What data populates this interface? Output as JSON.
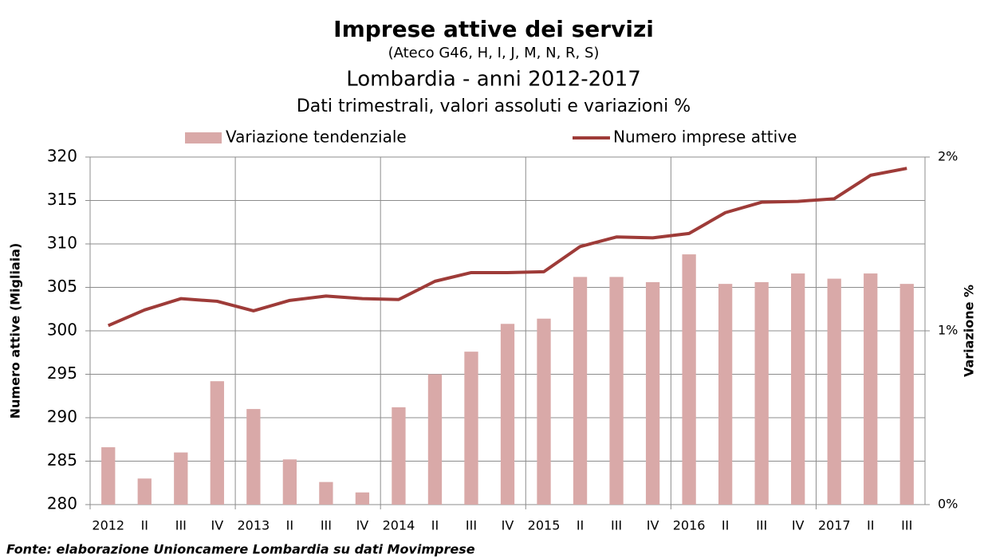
{
  "chart_data": {
    "type": "bar_line",
    "title": "Imprese attive dei servizi",
    "subtitle": "(Ateco G46, H, I, J, M, N, R, S)",
    "subtitle2": "Lombardia - anni 2012-2017",
    "subtitle3": "Dati trimestrali, valori assoluti e variazioni %",
    "ylabel": "Numero attive (Migliaia)",
    "y2label": "Variazione %",
    "source": "Fonte: elaborazione Unioncamere Lombardia su dati Movimprese",
    "categories": [
      "2012",
      "II",
      "III",
      "IV",
      "2013",
      "II",
      "III",
      "IV",
      "2014",
      "II",
      "III",
      "IV",
      "2015",
      "II",
      "III",
      "IV",
      "2016",
      "II",
      "III",
      "IV",
      "2017",
      "II",
      "III"
    ],
    "series": [
      {
        "name": "Variazione tendenziale",
        "color": "#d9a9a8",
        "kind": "bar",
        "axis": "y2",
        "values": [
          0.33,
          0.15,
          0.3,
          0.71,
          0.55,
          0.26,
          0.13,
          0.07,
          0.56,
          0.75,
          0.88,
          1.04,
          1.07,
          1.31,
          1.31,
          1.28,
          1.44,
          1.27,
          1.28,
          1.33,
          1.3,
          1.33,
          1.27
        ]
      },
      {
        "name": "Numero imprese attive",
        "color": "#9e3b38",
        "kind": "line",
        "values": [
          300.6,
          302.4,
          303.7,
          303.4,
          302.3,
          303.5,
          304.0,
          303.7,
          303.6,
          305.7,
          306.7,
          306.7,
          306.8,
          309.7,
          310.8,
          310.7,
          311.2,
          313.6,
          314.8,
          314.9,
          315.2,
          317.9,
          318.7
        ]
      }
    ],
    "ylim": [
      280,
      320
    ],
    "yticks": [
      280,
      285,
      290,
      295,
      300,
      305,
      310,
      315,
      320
    ],
    "y2lim": [
      0,
      2
    ],
    "y2ticks": [
      {
        "value": 0,
        "label": "0%"
      },
      {
        "value": 1,
        "label": "1%"
      },
      {
        "value": 2,
        "label": "2%"
      }
    ],
    "grid": true
  }
}
